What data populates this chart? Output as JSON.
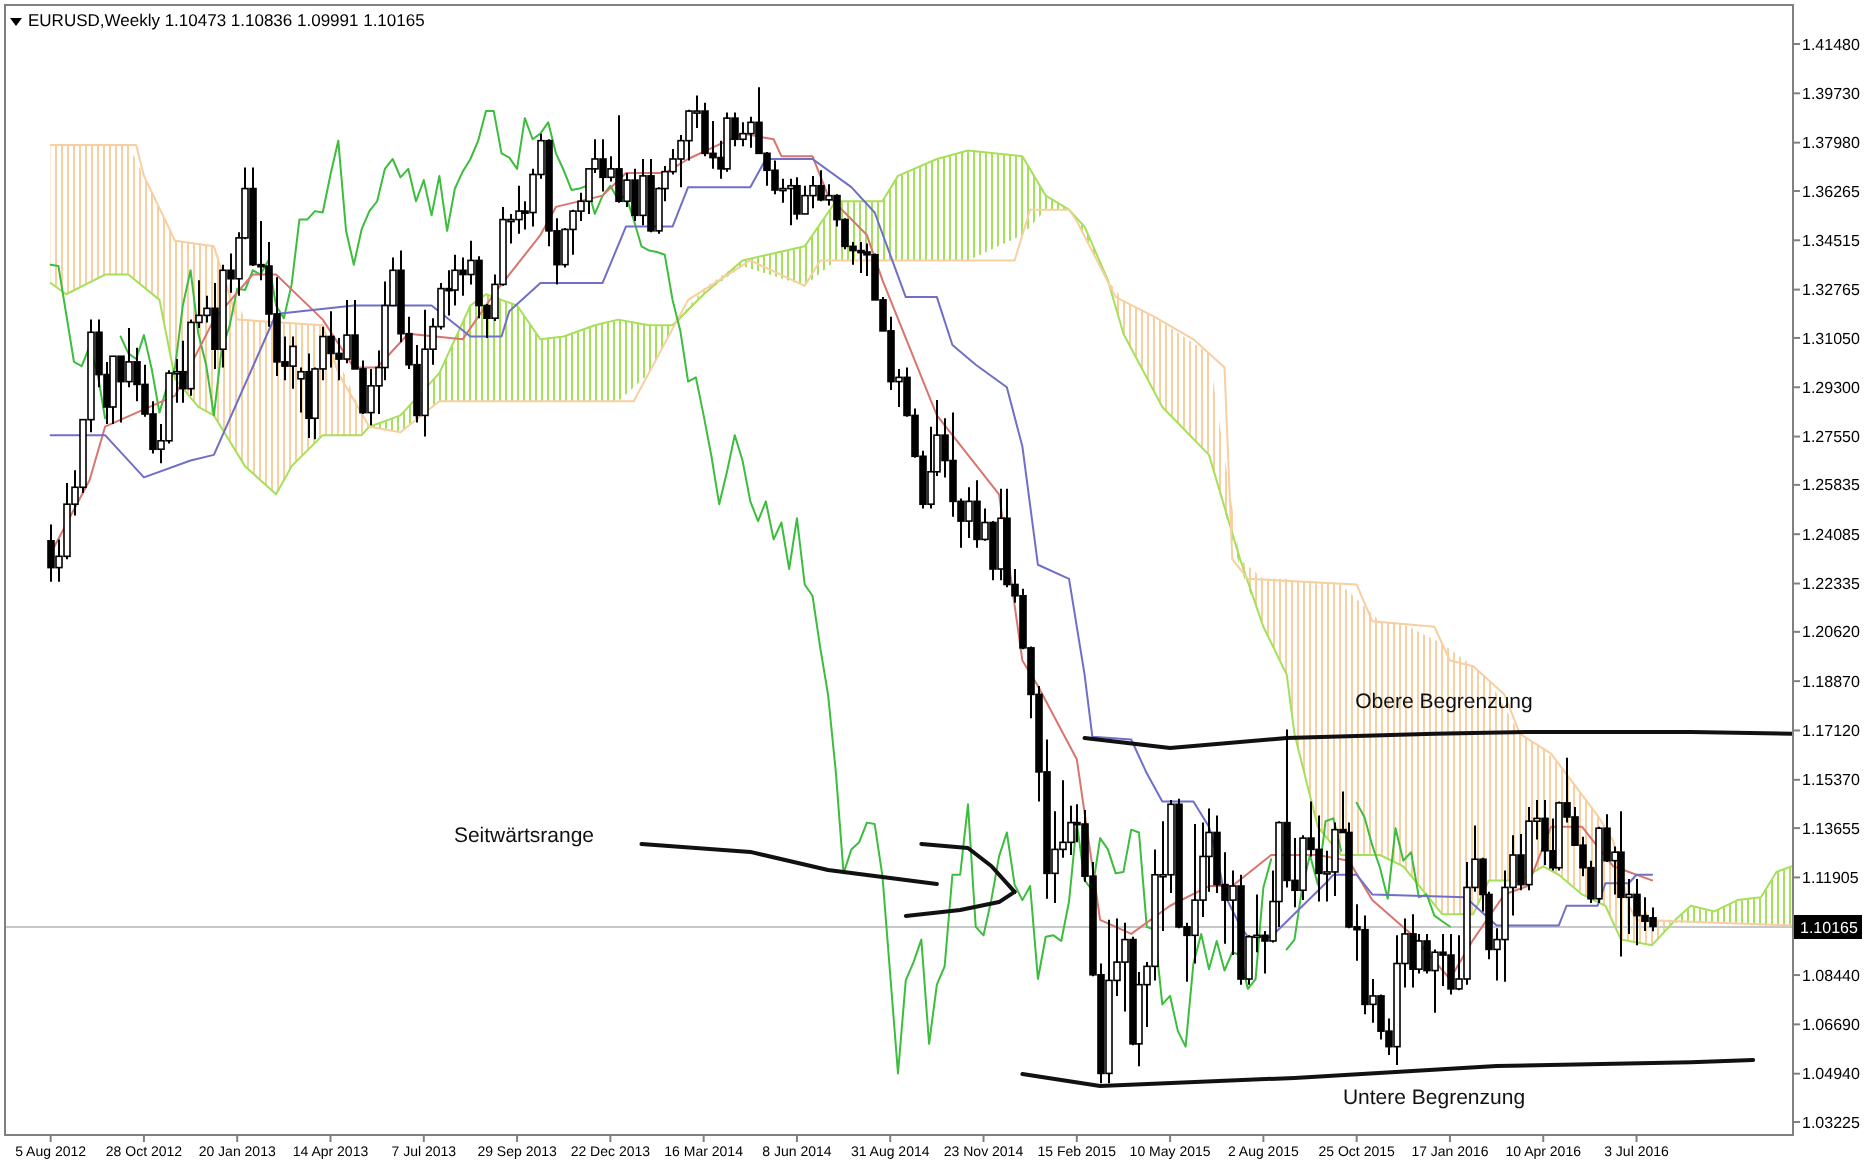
{
  "chart_data": {
    "type": "candlestick",
    "title": "EURUSD,Weekly  1.10473 1.10836 1.09991 1.10165",
    "annotations": [
      "Seitwärtsrange",
      "Obere Begrenzung",
      "Untere Begrenzung"
    ],
    "x": [
      "2012-08-05",
      "2012-08-12",
      "2012-08-19",
      "2012-08-26",
      "2012-09-02",
      "2012-09-09",
      "2012-09-16",
      "2012-09-23",
      "2012-09-30",
      "2012-10-07",
      "2012-10-14",
      "2012-10-21",
      "2012-10-28",
      "2012-11-04",
      "2012-11-11",
      "2012-11-18",
      "2012-11-25",
      "2012-12-02",
      "2012-12-09",
      "2012-12-16",
      "2012-12-23",
      "2012-12-30",
      "2013-01-06",
      "2013-01-13",
      "2013-01-20",
      "2013-01-27",
      "2013-02-03",
      "2013-02-10",
      "2013-02-17",
      "2013-02-24",
      "2013-03-03",
      "2013-03-10",
      "2013-03-17",
      "2013-03-24",
      "2013-03-31",
      "2013-04-07",
      "2013-04-14",
      "2013-04-21",
      "2013-04-28",
      "2013-05-05",
      "2013-05-12",
      "2013-05-19",
      "2013-05-26",
      "2013-06-02",
      "2013-06-09",
      "2013-06-16",
      "2013-06-23",
      "2013-06-30",
      "2013-07-07",
      "2013-07-14",
      "2013-07-21",
      "2013-07-28",
      "2013-08-04",
      "2013-08-11",
      "2013-08-18",
      "2013-08-25",
      "2013-09-01",
      "2013-09-08",
      "2013-09-15",
      "2013-09-22",
      "2013-09-29",
      "2013-10-06",
      "2013-10-13",
      "2013-10-20",
      "2013-10-27",
      "2013-11-03",
      "2013-11-10",
      "2013-11-17",
      "2013-11-24",
      "2013-12-01",
      "2013-12-08",
      "2013-12-15",
      "2013-12-22",
      "2013-12-29",
      "2014-01-05",
      "2014-01-12",
      "2014-01-19",
      "2014-01-26",
      "2014-02-02",
      "2014-02-09",
      "2014-02-16",
      "2014-02-23",
      "2014-03-02",
      "2014-03-09",
      "2014-03-16",
      "2014-03-23",
      "2014-03-30",
      "2014-04-06",
      "2014-04-13",
      "2014-04-20",
      "2014-04-27",
      "2014-05-04",
      "2014-05-11",
      "2014-05-18",
      "2014-05-25",
      "2014-06-01",
      "2014-06-08",
      "2014-06-15",
      "2014-06-22",
      "2014-06-29",
      "2014-07-06",
      "2014-07-13",
      "2014-07-20",
      "2014-07-27",
      "2014-08-03",
      "2014-08-10",
      "2014-08-17",
      "2014-08-24",
      "2014-08-31",
      "2014-09-07",
      "2014-09-14",
      "2014-09-21",
      "2014-09-28",
      "2014-10-05",
      "2014-10-12",
      "2014-10-19",
      "2014-10-26",
      "2014-11-02",
      "2014-11-09",
      "2014-11-16",
      "2014-11-23",
      "2014-11-30",
      "2014-12-07",
      "2014-12-14",
      "2014-12-21",
      "2014-12-28",
      "2015-01-04",
      "2015-01-11",
      "2015-01-18",
      "2015-01-25",
      "2015-02-01",
      "2015-02-08",
      "2015-02-15",
      "2015-02-22",
      "2015-03-01",
      "2015-03-08",
      "2015-03-15",
      "2015-03-22",
      "2015-03-29",
      "2015-04-05",
      "2015-04-12",
      "2015-04-19",
      "2015-04-26",
      "2015-05-03",
      "2015-05-10",
      "2015-05-17",
      "2015-05-24",
      "2015-05-31",
      "2015-06-07",
      "2015-06-14",
      "2015-06-21",
      "2015-06-28",
      "2015-07-05",
      "2015-07-12",
      "2015-07-19",
      "2015-07-26",
      "2015-08-02",
      "2015-08-09",
      "2015-08-16",
      "2015-08-23",
      "2015-08-30",
      "2015-09-06",
      "2015-09-13",
      "2015-09-20",
      "2015-09-27",
      "2015-10-04",
      "2015-10-11",
      "2015-10-18",
      "2015-10-25",
      "2015-11-01",
      "2015-11-08",
      "2015-11-15",
      "2015-11-22",
      "2015-11-29",
      "2015-12-06",
      "2015-12-13",
      "2015-12-20",
      "2015-12-27",
      "2016-01-03",
      "2016-01-10",
      "2016-01-17",
      "2016-01-24",
      "2016-01-31",
      "2016-02-07",
      "2016-02-14",
      "2016-02-21",
      "2016-02-28",
      "2016-03-06",
      "2016-03-13",
      "2016-03-20",
      "2016-03-27",
      "2016-04-03",
      "2016-04-10",
      "2016-04-17",
      "2016-04-24",
      "2016-05-01",
      "2016-05-08",
      "2016-05-15",
      "2016-05-22",
      "2016-05-29",
      "2016-06-05",
      "2016-06-12",
      "2016-06-19",
      "2016-06-26",
      "2016-07-03",
      "2016-07-10",
      "2016-07-17"
    ],
    "ohlc": [
      [
        1.2385,
        1.2443,
        1.224,
        1.229
      ],
      [
        1.229,
        1.239,
        1.224,
        1.233
      ],
      [
        1.233,
        1.259,
        1.232,
        1.2515
      ],
      [
        1.2515,
        1.2635,
        1.2475,
        1.2575
      ],
      [
        1.2575,
        1.2815,
        1.2555,
        1.2815
      ],
      [
        1.2815,
        1.317,
        1.277,
        1.3125
      ],
      [
        1.3125,
        1.317,
        1.293,
        1.2975
      ],
      [
        1.2975,
        1.302,
        1.28,
        1.286
      ],
      [
        1.286,
        1.304,
        1.28,
        1.304
      ],
      [
        1.304,
        1.304,
        1.2805,
        1.295
      ],
      [
        1.295,
        1.314,
        1.293,
        1.302
      ],
      [
        1.302,
        1.307,
        1.288,
        1.294
      ],
      [
        1.294,
        1.301,
        1.2825,
        1.2835
      ],
      [
        1.2835,
        1.288,
        1.2695,
        1.271
      ],
      [
        1.271,
        1.28,
        1.266,
        1.274
      ],
      [
        1.274,
        1.299,
        1.273,
        1.298
      ],
      [
        1.298,
        1.303,
        1.2875,
        1.2985
      ],
      [
        1.2985,
        1.3095,
        1.2875,
        1.2925
      ],
      [
        1.2925,
        1.317,
        1.29,
        1.316
      ],
      [
        1.316,
        1.331,
        1.314,
        1.3185
      ],
      [
        1.3185,
        1.3255,
        1.316,
        1.321
      ],
      [
        1.321,
        1.33,
        1.2995,
        1.3065
      ],
      [
        1.3065,
        1.3365,
        1.3,
        1.3345
      ],
      [
        1.3345,
        1.3405,
        1.3265,
        1.3315
      ],
      [
        1.3315,
        1.348,
        1.3255,
        1.346
      ],
      [
        1.346,
        1.371,
        1.3455,
        1.3635
      ],
      [
        1.3635,
        1.371,
        1.336,
        1.3365
      ],
      [
        1.3365,
        1.352,
        1.331,
        1.336
      ],
      [
        1.336,
        1.3445,
        1.3145,
        1.319
      ],
      [
        1.319,
        1.332,
        1.297,
        1.302
      ],
      [
        1.302,
        1.311,
        1.2955,
        1.3005
      ],
      [
        1.3005,
        1.311,
        1.2925,
        1.3075
      ],
      [
        1.296,
        1.3,
        1.284,
        1.2985
      ],
      [
        1.2985,
        1.305,
        1.275,
        1.282
      ],
      [
        1.282,
        1.3,
        1.2745,
        1.2995
      ],
      [
        1.2995,
        1.3145,
        1.2955,
        1.311
      ],
      [
        1.311,
        1.32,
        1.3,
        1.305
      ],
      [
        1.305,
        1.3105,
        1.2955,
        1.303
      ],
      [
        1.303,
        1.324,
        1.3015,
        1.3115
      ],
      [
        1.3115,
        1.324,
        1.2995,
        1.2995
      ],
      [
        1.2995,
        1.3025,
        1.2835,
        1.284
      ],
      [
        1.284,
        1.2995,
        1.2795,
        1.2935
      ],
      [
        1.2935,
        1.306,
        1.2835,
        1.3
      ],
      [
        1.3,
        1.3305,
        1.2955,
        1.322
      ],
      [
        1.322,
        1.339,
        1.322,
        1.3345
      ],
      [
        1.3345,
        1.3415,
        1.309,
        1.312
      ],
      [
        1.312,
        1.318,
        1.2995,
        1.301
      ],
      [
        1.301,
        1.308,
        1.2805,
        1.283
      ],
      [
        1.283,
        1.3205,
        1.2755,
        1.3065
      ],
      [
        1.3065,
        1.3175,
        1.301,
        1.3145
      ],
      [
        1.3145,
        1.33,
        1.3135,
        1.328
      ],
      [
        1.328,
        1.3345,
        1.3185,
        1.3275
      ],
      [
        1.3275,
        1.34,
        1.322,
        1.3345
      ],
      [
        1.3345,
        1.339,
        1.3255,
        1.333
      ],
      [
        1.333,
        1.345,
        1.3295,
        1.338
      ],
      [
        1.338,
        1.3395,
        1.3175,
        1.322
      ],
      [
        1.322,
        1.3225,
        1.3105,
        1.3175
      ],
      [
        1.3175,
        1.333,
        1.3165,
        1.3295
      ],
      [
        1.3295,
        1.357,
        1.329,
        1.3525
      ],
      [
        1.3525,
        1.3545,
        1.344,
        1.3525
      ],
      [
        1.3525,
        1.3645,
        1.3475,
        1.3555
      ],
      [
        1.3555,
        1.359,
        1.349,
        1.355
      ],
      [
        1.355,
        1.3705,
        1.35,
        1.3685
      ],
      [
        1.3685,
        1.383,
        1.367,
        1.3805
      ],
      [
        1.3805,
        1.381,
        1.343,
        1.3485
      ],
      [
        1.3485,
        1.353,
        1.3295,
        1.3365
      ],
      [
        1.3365,
        1.3495,
        1.3355,
        1.349
      ],
      [
        1.349,
        1.356,
        1.34,
        1.3555
      ],
      [
        1.3555,
        1.362,
        1.352,
        1.359
      ],
      [
        1.359,
        1.3705,
        1.3545,
        1.3705
      ],
      [
        1.3705,
        1.381,
        1.369,
        1.374
      ],
      [
        1.374,
        1.381,
        1.3625,
        1.3675
      ],
      [
        1.3675,
        1.375,
        1.366,
        1.3705
      ],
      [
        1.3705,
        1.3895,
        1.3585,
        1.359
      ],
      [
        1.359,
        1.369,
        1.357,
        1.3665
      ],
      [
        1.3665,
        1.3705,
        1.352,
        1.354
      ],
      [
        1.354,
        1.374,
        1.3505,
        1.368
      ],
      [
        1.368,
        1.374,
        1.348,
        1.3485
      ],
      [
        1.3485,
        1.364,
        1.3475,
        1.3635
      ],
      [
        1.3635,
        1.3715,
        1.359,
        1.3695
      ],
      [
        1.3695,
        1.3775,
        1.3685,
        1.374
      ],
      [
        1.374,
        1.3825,
        1.364,
        1.3805
      ],
      [
        1.3805,
        1.3915,
        1.3735,
        1.391
      ],
      [
        1.391,
        1.3965,
        1.385,
        1.391
      ],
      [
        1.391,
        1.394,
        1.375,
        1.376
      ],
      [
        1.376,
        1.3875,
        1.3705,
        1.3745
      ],
      [
        1.3745,
        1.3805,
        1.367,
        1.3705
      ],
      [
        1.3705,
        1.3905,
        1.3695,
        1.3885
      ],
      [
        1.3885,
        1.3905,
        1.3785,
        1.381
      ],
      [
        1.381,
        1.387,
        1.3785,
        1.383
      ],
      [
        1.383,
        1.389,
        1.378,
        1.387
      ],
      [
        1.387,
        1.3995,
        1.376,
        1.376
      ],
      [
        1.376,
        1.3765,
        1.3645,
        1.37
      ],
      [
        1.37,
        1.3735,
        1.3615,
        1.363
      ],
      [
        1.363,
        1.367,
        1.3585,
        1.3635
      ],
      [
        1.3635,
        1.367,
        1.3505,
        1.3645
      ],
      [
        1.3645,
        1.3675,
        1.3525,
        1.3545
      ],
      [
        1.3545,
        1.3645,
        1.3545,
        1.361
      ],
      [
        1.361,
        1.368,
        1.3565,
        1.3645
      ],
      [
        1.3645,
        1.37,
        1.359,
        1.3595
      ],
      [
        1.3595,
        1.365,
        1.3575,
        1.361
      ],
      [
        1.361,
        1.3615,
        1.35,
        1.3525
      ],
      [
        1.3525,
        1.353,
        1.342,
        1.343
      ],
      [
        1.343,
        1.3445,
        1.3365,
        1.3415
      ],
      [
        1.3415,
        1.3445,
        1.3335,
        1.341
      ],
      [
        1.341,
        1.344,
        1.3325,
        1.34
      ],
      [
        1.34,
        1.3405,
        1.324,
        1.324
      ],
      [
        1.324,
        1.325,
        1.313,
        1.313
      ],
      [
        1.313,
        1.318,
        1.292,
        1.295
      ],
      [
        1.295,
        1.2995,
        1.286,
        1.2965
      ],
      [
        1.2965,
        1.3,
        1.2825,
        1.283
      ],
      [
        1.283,
        1.2855,
        1.268,
        1.2685
      ],
      [
        1.2685,
        1.2705,
        1.25,
        1.2515
      ],
      [
        1.2515,
        1.279,
        1.25,
        1.263
      ],
      [
        1.263,
        1.2885,
        1.2615,
        1.276
      ],
      [
        1.276,
        1.282,
        1.261,
        1.267
      ],
      [
        1.267,
        1.284,
        1.247,
        1.2525
      ],
      [
        1.2525,
        1.2535,
        1.236,
        1.2455
      ],
      [
        1.2455,
        1.2575,
        1.2395,
        1.2525
      ],
      [
        1.2525,
        1.26,
        1.236,
        1.239
      ],
      [
        1.239,
        1.25,
        1.2385,
        1.245
      ],
      [
        1.245,
        1.2455,
        1.2245,
        1.2285
      ],
      [
        1.2285,
        1.257,
        1.2245,
        1.2465
      ],
      [
        1.2465,
        1.257,
        1.222,
        1.223
      ],
      [
        1.223,
        1.2285,
        1.2165,
        1.219
      ],
      [
        1.219,
        1.2215,
        1.2,
        1.2005
      ],
      [
        1.2005,
        1.201,
        1.1755,
        1.184
      ],
      [
        1.184,
        1.187,
        1.146,
        1.1565
      ],
      [
        1.1565,
        1.168,
        1.1115,
        1.1205
      ],
      [
        1.1205,
        1.1425,
        1.11,
        1.129
      ],
      [
        1.129,
        1.1535,
        1.126,
        1.1315
      ],
      [
        1.1315,
        1.1445,
        1.127,
        1.1385
      ],
      [
        1.1385,
        1.145,
        1.1315,
        1.138
      ],
      [
        1.138,
        1.143,
        1.1175,
        1.1195
      ],
      [
        1.1195,
        1.1245,
        1.084,
        1.0845
      ],
      [
        1.0845,
        1.0885,
        1.046,
        1.0495
      ],
      [
        1.0495,
        1.104,
        1.046,
        1.0825
      ],
      [
        1.0825,
        1.1045,
        1.077,
        1.089
      ],
      [
        1.089,
        1.103,
        1.0715,
        1.097
      ],
      [
        1.097,
        1.098,
        1.0595,
        1.06
      ],
      [
        1.06,
        1.0855,
        1.052,
        1.081
      ],
      [
        1.081,
        1.089,
        1.066,
        1.0875
      ],
      [
        1.0875,
        1.129,
        1.0825,
        1.12
      ],
      [
        1.12,
        1.139,
        1.1,
        1.12
      ],
      [
        1.12,
        1.1465,
        1.1135,
        1.145
      ],
      [
        1.145,
        1.147,
        1.101,
        1.1015
      ],
      [
        1.1015,
        1.103,
        1.082,
        1.0985
      ],
      [
        1.0985,
        1.138,
        1.0885,
        1.111
      ],
      [
        1.111,
        1.1385,
        1.105,
        1.1265
      ],
      [
        1.1265,
        1.1435,
        1.114,
        1.135
      ],
      [
        1.135,
        1.141,
        1.1135,
        1.1165
      ],
      [
        1.1165,
        1.128,
        1.0955,
        1.111
      ],
      [
        1.111,
        1.1215,
        1.0915,
        1.116
      ],
      [
        1.116,
        1.12,
        1.081,
        1.083
      ],
      [
        1.083,
        1.0985,
        1.081,
        1.098
      ],
      [
        1.098,
        1.113,
        1.0925,
        1.0985
      ],
      [
        1.0985,
        1.1,
        1.085,
        1.0965
      ],
      [
        1.0965,
        1.1215,
        1.096,
        1.1105
      ],
      [
        1.1105,
        1.139,
        1.1015,
        1.1385
      ],
      [
        1.1385,
        1.1715,
        1.1155,
        1.118
      ],
      [
        1.118,
        1.133,
        1.1085,
        1.1145
      ],
      [
        1.1145,
        1.134,
        1.111,
        1.133
      ],
      [
        1.133,
        1.146,
        1.1265,
        1.129
      ],
      [
        1.129,
        1.141,
        1.1105,
        1.1205
      ],
      [
        1.1205,
        1.1285,
        1.1105,
        1.121
      ],
      [
        1.121,
        1.1385,
        1.1125,
        1.136
      ],
      [
        1.136,
        1.1495,
        1.135,
        1.135
      ],
      [
        1.135,
        1.1385,
        1.101,
        1.1015
      ],
      [
        1.1015,
        1.1095,
        1.0895,
        1.1005
      ],
      [
        1.1005,
        1.1055,
        1.0705,
        1.074
      ],
      [
        1.074,
        1.083,
        1.0675,
        1.077
      ],
      [
        1.077,
        1.0775,
        1.0615,
        1.0645
      ],
      [
        1.0645,
        1.069,
        1.056,
        1.059
      ],
      [
        1.059,
        1.0985,
        1.0525,
        1.0885
      ],
      [
        1.0885,
        1.1045,
        1.08,
        1.099
      ],
      [
        1.099,
        1.106,
        1.08,
        1.0865
      ],
      [
        1.0865,
        1.099,
        1.085,
        1.0965
      ],
      [
        1.0965,
        1.099,
        1.085,
        1.086
      ],
      [
        1.086,
        1.0935,
        1.071,
        1.0925
      ],
      [
        1.0925,
        1.099,
        1.0805,
        1.0915
      ],
      [
        1.0915,
        1.099,
        1.0775,
        1.0795
      ],
      [
        1.0795,
        1.0985,
        1.079,
        1.083
      ],
      [
        1.083,
        1.1245,
        1.081,
        1.1155
      ],
      [
        1.1155,
        1.1375,
        1.114,
        1.1255
      ],
      [
        1.1255,
        1.126,
        1.107,
        1.113
      ],
      [
        1.113,
        1.114,
        1.09,
        1.0935
      ],
      [
        1.0935,
        1.101,
        1.0825,
        1.097
      ],
      [
        1.097,
        1.1215,
        1.082,
        1.1155
      ],
      [
        1.1155,
        1.134,
        1.1055,
        1.127
      ],
      [
        1.127,
        1.1345,
        1.1145,
        1.1165
      ],
      [
        1.1165,
        1.144,
        1.1145,
        1.139
      ],
      [
        1.139,
        1.1465,
        1.1325,
        1.14
      ],
      [
        1.14,
        1.1465,
        1.1235,
        1.1285
      ],
      [
        1.1285,
        1.14,
        1.1215,
        1.1225
      ],
      [
        1.1225,
        1.146,
        1.1215,
        1.1455
      ],
      [
        1.1455,
        1.1615,
        1.1385,
        1.1405
      ],
      [
        1.1405,
        1.144,
        1.1305,
        1.1305
      ],
      [
        1.1305,
        1.1335,
        1.1195,
        1.1225
      ],
      [
        1.1225,
        1.125,
        1.11,
        1.1115
      ],
      [
        1.1115,
        1.137,
        1.11,
        1.1365
      ],
      [
        1.1365,
        1.1415,
        1.1245,
        1.125
      ],
      [
        1.125,
        1.13,
        1.113,
        1.128
      ],
      [
        1.128,
        1.1425,
        1.091,
        1.112
      ],
      [
        1.112,
        1.1185,
        1.099,
        1.113
      ],
      [
        1.113,
        1.1185,
        1.095,
        1.1055
      ],
      [
        1.1055,
        1.112,
        1.1,
        1.1035
      ],
      [
        1.10473,
        1.10836,
        1.09991,
        1.10165
      ]
    ],
    "series": [
      {
        "type": "line",
        "color": "#a6e05a",
        "x": [
          "2012-08-05",
          "2012-08-19",
          "2012-09-23",
          "2012-10-14",
          "2012-11-11",
          "2012-11-25",
          "2012-12-16",
          "2012-12-30",
          "2013-01-27",
          "2013-02-24",
          "2013-03-10",
          "2013-04-07",
          "2013-05-12",
          "2013-05-19",
          "2013-06-16",
          "2013-07-21",
          "2013-08-18",
          "2013-09-01",
          "2013-09-29",
          "2013-10-20",
          "2013-11-10",
          "2013-12-08",
          "2013-12-29",
          "2014-01-26",
          "2014-02-16",
          "2014-03-16",
          "2014-04-20",
          "2014-06-15",
          "2014-07-13",
          "2014-08-24",
          "2014-09-07",
          "2014-10-12",
          "2014-11-09",
          "2014-12-28",
          "2015-01-18",
          "2015-02-08",
          "2015-02-22",
          "2015-03-15",
          "2015-03-29",
          "2015-05-03",
          "2015-06-14",
          "2015-07-12",
          "2015-08-02",
          "2015-08-23",
          "2015-08-30",
          "2015-09-20",
          "2015-10-11",
          "2015-11-15",
          "2015-12-06",
          "2016-01-10",
          "2016-02-07",
          "2016-02-21",
          "2016-03-20",
          "2016-04-10",
          "2016-04-24",
          "2016-05-15",
          "2016-06-05",
          "2016-06-19",
          "2016-07-17",
          "2016-08-07",
          "2016-08-21",
          "2016-09-11",
          "2016-10-02",
          "2016-10-23",
          "2016-11-06",
          "2016-11-20"
        ],
        "values": [
          1.33,
          1.326,
          1.333,
          1.333,
          1.324,
          1.296,
          1.286,
          1.283,
          1.265,
          1.255,
          1.265,
          1.276,
          1.276,
          1.279,
          1.283,
          1.298,
          1.322,
          1.326,
          1.322,
          1.31,
          1.311,
          1.315,
          1.317,
          1.315,
          1.315,
          1.326,
          1.338,
          1.343,
          1.359,
          1.359,
          1.368,
          1.374,
          1.377,
          1.375,
          1.361,
          1.356,
          1.35,
          1.331,
          1.312,
          1.286,
          1.269,
          1.232,
          1.208,
          1.191,
          1.17,
          1.137,
          1.127,
          1.127,
          1.123,
          1.106,
          1.106,
          1.118,
          1.118,
          1.123,
          1.12,
          1.113,
          1.109,
          1.097,
          1.095,
          1.104,
          1.109,
          1.107,
          1.111,
          1.112,
          1.121,
          1.123
        ],
        "lower": [
          1.33,
          1.326,
          1.333,
          1.333,
          1.324,
          1.296,
          1.286,
          1.283,
          1.265,
          1.255,
          1.265,
          1.276,
          1.276,
          1.279,
          1.277,
          1.288,
          1.288,
          1.288,
          1.288,
          1.288,
          1.288,
          1.288,
          1.288,
          1.298,
          1.314,
          1.326,
          1.336,
          1.329,
          1.338,
          1.338,
          1.338,
          1.338,
          1.338,
          1.347,
          1.356,
          1.356,
          1.347,
          1.33,
          1.312,
          1.286,
          1.269,
          1.229,
          1.208,
          1.191,
          1.17,
          1.137,
          1.127,
          1.127,
          1.123,
          1.106,
          1.106,
          1.118,
          1.118,
          1.123,
          1.12,
          1.113,
          1.109,
          1.097,
          1.095,
          1.103,
          1.103,
          1.103,
          1.103,
          1.102,
          1.102,
          1.102
        ],
        "upper": [
          1.379,
          1.379,
          1.379,
          1.379,
          1.357,
          1.345,
          1.344,
          1.343,
          1.317,
          1.316,
          1.316,
          1.315,
          1.284,
          1.279,
          1.283,
          1.298,
          1.322,
          1.326,
          1.322,
          1.31,
          1.311,
          1.315,
          1.317,
          1.315,
          1.315,
          1.328,
          1.338,
          1.343,
          1.359,
          1.359,
          1.368,
          1.374,
          1.377,
          1.375,
          1.361,
          1.356,
          1.35,
          1.331,
          1.324,
          1.316,
          1.305,
          1.232,
          1.225,
          1.225,
          1.224,
          1.224,
          1.223,
          1.21,
          1.209,
          1.202,
          1.194,
          1.189,
          1.17,
          1.165,
          1.159,
          1.148,
          1.137,
          1.121,
          1.104,
          1.104,
          1.109,
          1.107,
          1.111,
          1.112,
          1.121,
          1.123
        ]
      },
      {
        "type": "line",
        "color": "#f7cfa0",
        "x": [
          "2012-08-05",
          "2012-10-21",
          "2012-10-28",
          "2012-11-25",
          "2012-12-30",
          "2013-01-20",
          "2013-04-07",
          "2013-04-21",
          "2013-05-19",
          "2013-06-16",
          "2013-07-21",
          "2014-01-12",
          "2014-03-02",
          "2014-04-27",
          "2014-06-15",
          "2014-06-29",
          "2014-12-21",
          "2015-01-04",
          "2015-02-08",
          "2015-02-15",
          "2015-03-22",
          "2015-04-26",
          "2015-05-31",
          "2015-06-28",
          "2015-07-05",
          "2015-07-19",
          "2015-10-25",
          "2015-11-08",
          "2016-01-03",
          "2016-01-17",
          "2016-02-07",
          "2016-03-06",
          "2016-03-20",
          "2016-04-17",
          "2016-05-29",
          "2016-06-12",
          "2016-06-26",
          "2016-07-03",
          "2016-11-20"
        ],
        "values": [
          1.379,
          1.379,
          1.368,
          1.345,
          1.343,
          1.317,
          1.315,
          1.298,
          1.279,
          1.277,
          1.288,
          1.288,
          1.324,
          1.338,
          1.329,
          1.338,
          1.338,
          1.356,
          1.356,
          1.352,
          1.325,
          1.318,
          1.31,
          1.3,
          1.232,
          1.225,
          1.223,
          1.21,
          1.208,
          1.196,
          1.194,
          1.184,
          1.17,
          1.163,
          1.141,
          1.132,
          1.109,
          1.104,
          1.102
        ]
      },
      {
        "type": "line",
        "color": "#3dbd3d",
        "values": [
          1.3365,
          1.336,
          1.319,
          1.302,
          1.3005,
          1.3075,
          1.2985,
          1.282,
          null,
          1.311,
          1.305,
          1.303,
          1.3115,
          1.2995,
          1.284,
          1.2935,
          1.3,
          1.322,
          1.3345,
          1.312,
          1.301,
          1.283,
          1.3065,
          1.3145,
          1.328,
          1.3275,
          1.3345,
          1.333,
          1.338,
          1.322,
          1.3175,
          1.3295,
          1.3525,
          1.3525,
          1.3555,
          1.355,
          1.3685,
          1.3805,
          1.3485,
          1.3365,
          1.349,
          1.3555,
          1.359,
          1.3705,
          1.374,
          1.3675,
          1.3705,
          1.359,
          1.3665,
          1.354,
          1.368,
          1.3485,
          1.3635,
          1.3695,
          1.374,
          1.3805,
          1.391,
          1.391,
          1.376,
          1.3745,
          1.3705,
          1.3885,
          1.381,
          1.383,
          1.387,
          1.376,
          1.37,
          1.363,
          1.3635,
          1.3645,
          1.3545,
          1.361,
          1.3645,
          1.3595,
          1.361,
          1.3525,
          1.343,
          1.3415,
          1.341,
          1.34,
          1.324,
          1.313,
          1.295,
          1.2965,
          1.283,
          1.2685,
          1.2515,
          1.263,
          1.276,
          1.267,
          1.2525,
          1.2455,
          1.2525,
          1.239,
          1.245,
          1.2285,
          1.2465,
          1.223,
          1.219,
          1.2005,
          1.184,
          1.1565,
          1.1205,
          1.129,
          1.1315,
          1.1385,
          1.138,
          1.1195,
          1.0845,
          1.0495,
          1.0825,
          1.089,
          1.097,
          1.06,
          1.081,
          1.0875,
          1.12,
          1.12,
          1.145,
          1.1015,
          1.0985,
          1.111,
          1.1265,
          1.135,
          1.1165,
          1.111,
          1.116,
          1.083,
          1.098,
          1.0985,
          1.0965,
          1.1105,
          1.1385,
          1.118,
          1.1145,
          1.133,
          1.129,
          1.1205,
          1.121,
          1.136,
          1.135,
          1.1015,
          1.1005,
          1.074,
          1.077,
          1.0645,
          1.059,
          1.0885,
          1.099,
          1.0865,
          1.0965,
          1.086,
          1.0925,
          1.0915,
          1.0795,
          1.083,
          1.1155,
          1.1255,
          null,
          1.0935,
          1.097,
          1.1155,
          1.127,
          1.1165,
          1.139,
          1.14,
          1.1285,
          null,
          1.1455,
          1.1405,
          1.1305,
          1.1225,
          1.1115,
          1.1365,
          1.125,
          1.128,
          1.112,
          1.113,
          1.1055,
          1.1035,
          1.10165,
          null,
          null,
          null,
          null,
          null,
          null,
          null,
          null,
          null,
          null,
          null,
          null,
          null,
          null,
          null,
          null,
          null,
          null,
          null,
          null,
          null,
          null,
          null,
          null,
          null,
          null
        ]
      },
      {
        "type": "line",
        "color": "#d9746e",
        "x": [
          "2012-08-05",
          "2012-09-09",
          "2012-09-23",
          "2012-11-25",
          "2012-12-30",
          "2013-02-03",
          "2013-02-24",
          "2013-04-07",
          "2013-05-05",
          "2013-05-26",
          "2013-06-23",
          "2013-08-11",
          "2013-09-08",
          "2013-10-20",
          "2013-11-03",
          "2013-12-15",
          "2014-01-05",
          "2014-02-09",
          "2014-03-02",
          "2014-04-20",
          "2014-05-18",
          "2014-05-25",
          "2014-06-22",
          "2014-07-06",
          "2014-08-10",
          "2014-08-24",
          "2014-10-12",
          "2014-12-07",
          "2014-12-28",
          "2015-01-11",
          "2015-02-15",
          "2015-03-08",
          "2015-04-05",
          "2015-05-10",
          "2015-06-14",
          "2015-07-05",
          "2015-08-09",
          "2015-09-20",
          "2015-10-18",
          "2015-11-08",
          "2015-12-13",
          "2016-01-17",
          "2016-02-07",
          "2016-03-06",
          "2016-03-27",
          "2016-04-17",
          "2016-05-15",
          "2016-06-12",
          "2016-07-17"
        ],
        "values": [
          1.234,
          1.26,
          1.279,
          1.29,
          1.317,
          1.333,
          1.333,
          1.317,
          1.3,
          1.3,
          1.312,
          1.31,
          1.326,
          1.347,
          1.357,
          1.361,
          1.369,
          1.369,
          1.374,
          1.383,
          1.381,
          1.375,
          1.375,
          1.361,
          1.347,
          1.331,
          1.283,
          1.255,
          1.196,
          1.187,
          1.161,
          1.104,
          1.099,
          1.109,
          1.116,
          1.116,
          1.127,
          1.127,
          1.125,
          1.111,
          1.099,
          1.083,
          1.097,
          1.113,
          1.116,
          1.137,
          1.137,
          1.123,
          1.118
        ]
      },
      {
        "type": "line",
        "color": "#6f6fc8",
        "x": [
          "2012-08-05",
          "2012-09-23",
          "2012-10-28",
          "2012-12-09",
          "2012-12-30",
          "2013-02-24",
          "2013-05-05",
          "2013-07-14",
          "2013-08-18",
          "2013-09-15",
          "2013-09-22",
          "2013-10-20",
          "2013-12-15",
          "2014-01-05",
          "2014-02-16",
          "2014-03-02",
          "2014-04-27",
          "2014-05-11",
          "2014-06-22",
          "2014-07-27",
          "2014-08-17",
          "2014-09-14",
          "2014-10-12",
          "2014-10-26",
          "2014-11-16",
          "2014-12-14",
          "2014-12-28",
          "2015-01-11",
          "2015-02-08",
          "2015-02-22",
          "2015-03-01",
          "2015-04-05",
          "2015-04-19",
          "2015-05-03",
          "2015-05-31",
          "2015-06-14",
          "2015-06-21",
          "2015-06-28",
          "2015-07-12",
          "2015-07-19",
          "2015-08-09",
          "2015-09-27",
          "2015-10-04",
          "2015-10-25",
          "2015-11-08",
          "2016-01-31",
          "2016-02-28",
          "2016-04-24",
          "2016-05-01",
          "2016-05-29",
          "2016-06-05",
          "2016-06-26",
          "2016-07-03",
          "2016-07-17"
        ],
        "values": [
          1.276,
          1.276,
          1.261,
          1.267,
          1.269,
          1.319,
          1.322,
          1.322,
          1.311,
          1.311,
          1.32,
          1.33,
          1.33,
          1.35,
          1.35,
          1.364,
          1.364,
          1.374,
          1.374,
          1.364,
          1.355,
          1.325,
          1.325,
          1.308,
          1.301,
          1.293,
          1.272,
          1.23,
          1.225,
          1.191,
          1.169,
          1.168,
          1.156,
          1.146,
          1.146,
          1.137,
          1.127,
          1.113,
          1.102,
          1.098,
          1.098,
          1.117,
          1.12,
          1.12,
          1.113,
          1.112,
          1.102,
          1.102,
          1.109,
          1.109,
          1.117,
          1.117,
          1.12,
          1.12
        ]
      },
      {
        "type": "line",
        "color": "#111111",
        "x": [
          "2015-02-22",
          "2015-05-10",
          "2015-08-23",
          "2016-01-03",
          "2016-03-27",
          "2016-08-21",
          "2016-11-20"
        ],
        "values": [
          1.1685,
          1.165,
          1.1685,
          1.17,
          1.1707,
          1.1707,
          1.17
        ]
      },
      {
        "type": "line",
        "color": "#111111",
        "x": [
          "2014-12-28",
          "2015-03-08",
          "2015-08-30",
          "2016-02-28",
          "2016-08-21",
          "2016-10-16"
        ],
        "values": [
          1.0493,
          1.045,
          1.0479,
          1.0521,
          1.0535,
          1.0543
        ]
      },
      {
        "type": "line",
        "color": "#111111",
        "x": [
          "2014-01-19",
          "2014-04-27",
          "2014-07-06",
          "2014-10-12"
        ],
        "values": [
          1.1309,
          1.1281,
          1.1217,
          1.1167
        ]
      },
      {
        "type": "line",
        "color": "#111111",
        "x": [
          "2014-09-28",
          "2014-11-09",
          "2014-11-30",
          "2014-12-21"
        ],
        "values": [
          1.1309,
          1.1295,
          1.1231,
          1.1139
        ]
      },
      {
        "type": "line",
        "color": "#111111",
        "x": [
          "2014-09-14",
          "2014-11-02",
          "2014-12-07",
          "2014-12-21"
        ],
        "values": [
          1.1054,
          1.1075,
          1.1103,
          1.1139
        ]
      }
    ],
    "ref_lines": [
      {
        "axis": "y",
        "value": 1.10165,
        "label": "1.10165",
        "color": "#c8c8c8"
      }
    ],
    "xlim": [
      "2012-06-24",
      "2016-11-20"
    ],
    "xticks": [
      {
        "value": "2012-08-05",
        "label": "5 Aug 2012"
      },
      {
        "value": "2012-10-28",
        "label": "28 Oct 2012"
      },
      {
        "value": "2013-01-20",
        "label": "20 Jan 2013"
      },
      {
        "value": "2013-04-14",
        "label": "14 Apr 2013"
      },
      {
        "value": "2013-07-07",
        "label": "7 Jul 2013"
      },
      {
        "value": "2013-09-29",
        "label": "29 Sep 2013"
      },
      {
        "value": "2013-12-22",
        "label": "22 Dec 2013"
      },
      {
        "value": "2014-03-16",
        "label": "16 Mar 2014"
      },
      {
        "value": "2014-06-08",
        "label": "8 Jun 2014"
      },
      {
        "value": "2014-08-31",
        "label": "31 Aug 2014"
      },
      {
        "value": "2014-11-23",
        "label": "23 Nov 2014"
      },
      {
        "value": "2015-02-15",
        "label": "15 Feb 2015"
      },
      {
        "value": "2015-05-10",
        "label": "10 May 2015"
      },
      {
        "value": "2015-08-02",
        "label": "2 Aug 2015"
      },
      {
        "value": "2015-10-25",
        "label": "25 Oct 2015"
      },
      {
        "value": "2016-01-17",
        "label": "17 Jan 2016"
      },
      {
        "value": "2016-04-10",
        "label": "10 Apr 2016"
      },
      {
        "value": "2016-07-03",
        "label": "3 Jul 2016"
      }
    ],
    "ylim": [
      1.028,
      1.429
    ],
    "yticks": [
      {
        "value": 1.4148,
        "label": "1.41480"
      },
      {
        "value": 1.3973,
        "label": "1.39730"
      },
      {
        "value": 1.3798,
        "label": "1.37980"
      },
      1.36265,
      1.34515,
      1.32765,
      {
        "value": 1.3105,
        "label": "1.31050"
      },
      {
        "value": 1.293,
        "label": "1.29300"
      },
      {
        "value": 1.2755,
        "label": "1.27550"
      },
      1.25835,
      1.24085,
      1.22335,
      {
        "value": 1.2062,
        "label": "1.20620"
      },
      {
        "value": 1.1887,
        "label": "1.18870"
      },
      {
        "value": 1.1712,
        "label": "1.17120"
      },
      {
        "value": 1.1537,
        "label": "1.15370"
      },
      1.13655,
      1.11905,
      {
        "value": 1.0844,
        "label": "1.08440"
      },
      {
        "value": 1.0669,
        "label": "1.06690"
      },
      {
        "value": 1.0494,
        "label": "1.04940"
      },
      1.03225
    ]
  }
}
